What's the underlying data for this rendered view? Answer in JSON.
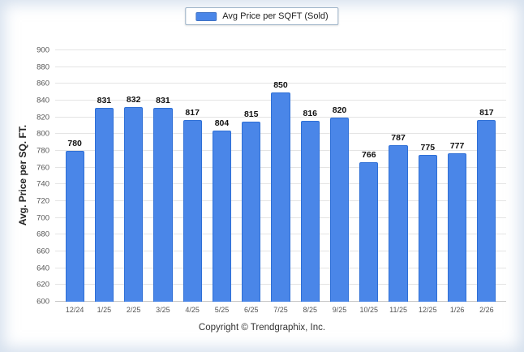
{
  "page": {
    "footer": "Copyright © Trendgraphix, Inc."
  },
  "legend": {
    "label": "Avg Price per SQFT (Sold)",
    "swatch_color": "#4a86e8"
  },
  "chart_data": {
    "type": "bar",
    "title": "",
    "xlabel": "",
    "ylabel": "Avg. Price per SQ. FT.",
    "ylim": [
      600,
      900
    ],
    "ytick_step": 20,
    "grid": true,
    "legend_position": "top-center",
    "categories": [
      "12/24",
      "1/25",
      "2/25",
      "3/25",
      "4/25",
      "5/25",
      "6/25",
      "7/25",
      "8/25",
      "9/25",
      "10/25",
      "11/25",
      "12/25",
      "1/26",
      "2/26"
    ],
    "series": [
      {
        "name": "Avg Price per SQFT (Sold)",
        "values": [
          780,
          831,
          832,
          831,
          817,
          804,
          815,
          850,
          816,
          820,
          766,
          787,
          775,
          777,
          817
        ]
      }
    ],
    "bar_color": "#4a86e8",
    "bar_border_color": "#2e6fd6",
    "value_labels": true
  }
}
